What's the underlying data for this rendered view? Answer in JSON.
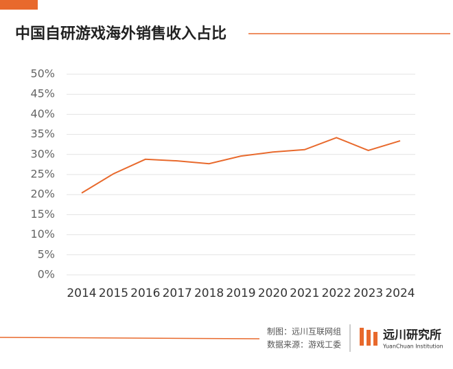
{
  "chart_data": {
    "type": "line",
    "title": "中国自研游戏海外销售收入占比",
    "categories": [
      "2014",
      "2015",
      "2016",
      "2017",
      "2018",
      "2019",
      "2020",
      "2021",
      "2022",
      "2023",
      "2024"
    ],
    "series": [
      {
        "color": "#e8692c",
        "values": [
          20.4,
          25.2,
          28.8,
          28.4,
          27.7,
          29.6,
          30.6,
          31.2,
          34.2,
          31.0,
          33.4
        ]
      }
    ],
    "ylim": [
      0,
      50
    ],
    "yticks": [
      {
        "value": 0,
        "label": "0%"
      },
      {
        "value": 5,
        "label": "5%"
      },
      {
        "value": 10,
        "label": "10%"
      },
      {
        "value": 15,
        "label": "15%"
      },
      {
        "value": 20,
        "label": "20%"
      },
      {
        "value": 25,
        "label": "25%"
      },
      {
        "value": 30,
        "label": "30%"
      },
      {
        "value": 35,
        "label": "35%"
      },
      {
        "value": 40,
        "label": "40%"
      },
      {
        "value": 45,
        "label": "45%"
      },
      {
        "value": 50,
        "label": "50%"
      }
    ],
    "grid": true
  },
  "footer": {
    "maker": "制图：远川互联网组",
    "source": "数据来源：游戏工委",
    "brand": "远川研究所",
    "brand_en": "YuanChuan Institution"
  }
}
